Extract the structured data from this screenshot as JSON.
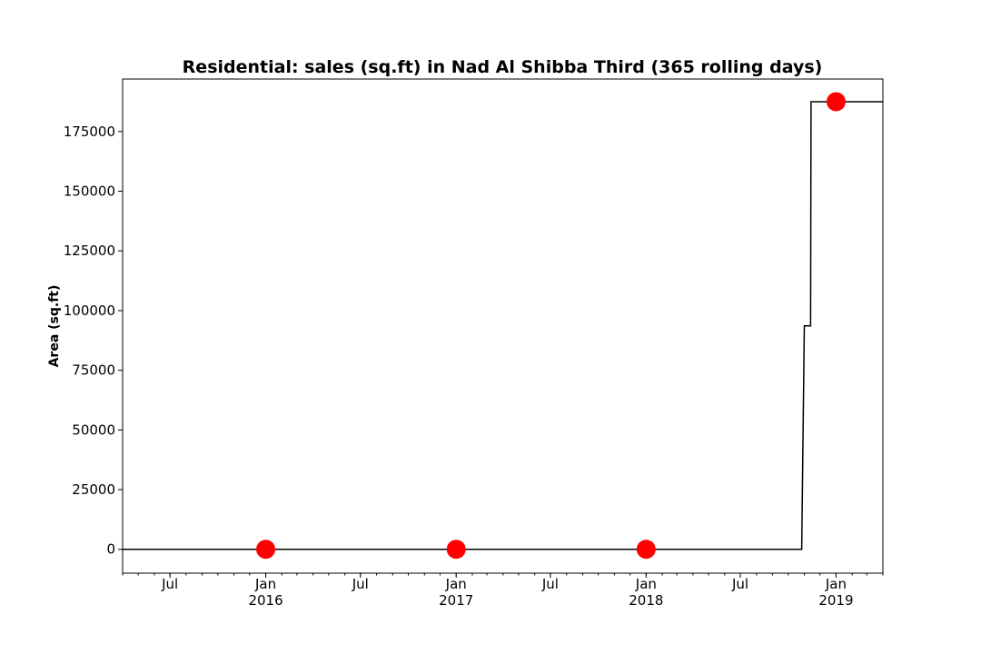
{
  "chart_data": {
    "type": "line",
    "title": "Residential: sales (sq.ft) in Nad Al Shibba Third (365 rolling days)",
    "xlabel": "",
    "ylabel": "Area (sq.ft)",
    "xlim": [
      "2015-04-01",
      "2019-04-01"
    ],
    "ylim": [
      -10000,
      197000
    ],
    "y_ticks": [
      0,
      25000,
      50000,
      75000,
      100000,
      125000,
      150000,
      175000
    ],
    "x_ticks": [
      {
        "date": "2015-07-01",
        "label": "Jul",
        "sublabel": ""
      },
      {
        "date": "2016-01-01",
        "label": "Jan",
        "sublabel": "2016"
      },
      {
        "date": "2016-07-01",
        "label": "Jul",
        "sublabel": ""
      },
      {
        "date": "2017-01-01",
        "label": "Jan",
        "sublabel": "2017"
      },
      {
        "date": "2017-07-01",
        "label": "Jul",
        "sublabel": ""
      },
      {
        "date": "2018-01-01",
        "label": "Jan",
        "sublabel": "2018"
      },
      {
        "date": "2018-07-01",
        "label": "Jul",
        "sublabel": ""
      },
      {
        "date": "2019-01-01",
        "label": "Jan",
        "sublabel": "2019"
      }
    ],
    "series": [
      {
        "line_color": "#000000",
        "x": [
          "2015-04-01",
          "2018-10-27",
          "2018-11-01",
          "2018-11-13",
          "2018-11-14",
          "2019-04-01"
        ],
        "y": [
          0,
          0,
          93600,
          93600,
          187500,
          187500
        ]
      }
    ],
    "markers": {
      "color": "#ff0000",
      "x": [
        "2016-01-01",
        "2017-01-01",
        "2018-01-01",
        "2019-01-01"
      ],
      "y": [
        0,
        0,
        0,
        187500
      ]
    }
  }
}
